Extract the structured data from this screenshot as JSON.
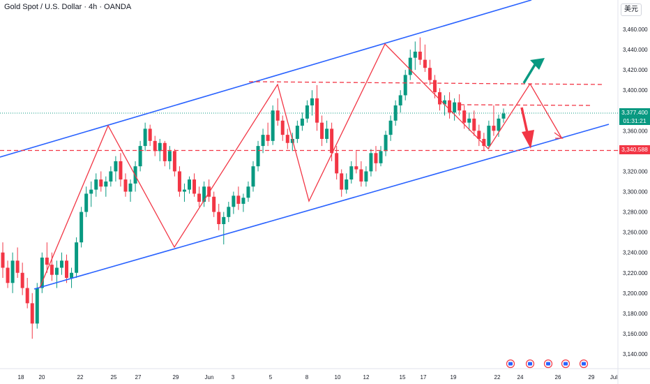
{
  "title": "Gold Spot / U.S. Dollar · 4h · OANDA",
  "currency_button": "美元",
  "price_tag": {
    "price": "3,377.400",
    "countdown": "01:31:21"
  },
  "level_tag": "3,340.588",
  "colors": {
    "up": "#089981",
    "down": "#f23645",
    "channel": "#2962ff",
    "pattern": "#f23645",
    "tag": "#089981"
  },
  "chart_data": {
    "type": "candlestick",
    "instrument": "Gold Spot / U.S. Dollar",
    "timeframe": "4h",
    "ylim": [
      3140,
      3470
    ],
    "y_ticks": [
      "3,460.000",
      "3,440.000",
      "3,420.000",
      "3,400.000",
      "3,380.000",
      "3,360.000",
      "3,340.000",
      "3,320.000",
      "3,300.000",
      "3,280.000",
      "3,260.000",
      "3,240.000",
      "3,220.000",
      "3,200.000",
      "3,180.000",
      "3,160.000",
      "3,140.000"
    ],
    "x_ticks": [
      "18",
      "20",
      "22",
      "25",
      "27",
      "29",
      "Jun",
      "3",
      "5",
      "8",
      "10",
      "12",
      "15",
      "17",
      "19",
      "22",
      "24",
      "26",
      "29",
      "Jul"
    ],
    "current_price": 3377.4,
    "support_level": 3340.588,
    "resistance_levels": [
      3405,
      3384
    ],
    "ohlc": [
      [
        3240,
        3250,
        3215,
        3225
      ],
      [
        3225,
        3232,
        3205,
        3210
      ],
      [
        3210,
        3240,
        3200,
        3232
      ],
      [
        3232,
        3245,
        3215,
        3220
      ],
      [
        3220,
        3230,
        3198,
        3205
      ],
      [
        3205,
        3215,
        3185,
        3190
      ],
      [
        3190,
        3200,
        3155,
        3170
      ],
      [
        3170,
        3210,
        3165,
        3205
      ],
      [
        3205,
        3240,
        3200,
        3235
      ],
      [
        3235,
        3250,
        3220,
        3228
      ],
      [
        3228,
        3240,
        3212,
        3218
      ],
      [
        3218,
        3232,
        3205,
        3225
      ],
      [
        3225,
        3240,
        3218,
        3232
      ],
      [
        3232,
        3238,
        3210,
        3215
      ],
      [
        3215,
        3225,
        3205,
        3220
      ],
      [
        3220,
        3255,
        3215,
        3250
      ],
      [
        3250,
        3285,
        3245,
        3280
      ],
      [
        3280,
        3305,
        3275,
        3298
      ],
      [
        3298,
        3310,
        3285,
        3302
      ],
      [
        3302,
        3318,
        3295,
        3312
      ],
      [
        3312,
        3320,
        3300,
        3305
      ],
      [
        3305,
        3315,
        3295,
        3310
      ],
      [
        3310,
        3325,
        3305,
        3320
      ],
      [
        3320,
        3335,
        3310,
        3330
      ],
      [
        3330,
        3338,
        3305,
        3312
      ],
      [
        3312,
        3318,
        3295,
        3300
      ],
      [
        3300,
        3312,
        3290,
        3308
      ],
      [
        3308,
        3330,
        3300,
        3325
      ],
      [
        3325,
        3350,
        3320,
        3345
      ],
      [
        3345,
        3368,
        3340,
        3362
      ],
      [
        3362,
        3366,
        3345,
        3350
      ],
      [
        3350,
        3355,
        3335,
        3340
      ],
      [
        3340,
        3352,
        3330,
        3348
      ],
      [
        3348,
        3350,
        3325,
        3330
      ],
      [
        3330,
        3345,
        3322,
        3340
      ],
      [
        3340,
        3342,
        3315,
        3320
      ],
      [
        3320,
        3325,
        3295,
        3300
      ],
      [
        3300,
        3308,
        3290,
        3302
      ],
      [
        3302,
        3315,
        3298,
        3312
      ],
      [
        3312,
        3318,
        3295,
        3298
      ],
      [
        3298,
        3305,
        3285,
        3290
      ],
      [
        3290,
        3310,
        3285,
        3305
      ],
      [
        3305,
        3312,
        3290,
        3295
      ],
      [
        3295,
        3300,
        3275,
        3280
      ],
      [
        3280,
        3288,
        3262,
        3268
      ],
      [
        3268,
        3280,
        3248,
        3275
      ],
      [
        3275,
        3290,
        3270,
        3285
      ],
      [
        3285,
        3300,
        3278,
        3296
      ],
      [
        3296,
        3305,
        3282,
        3288
      ],
      [
        3288,
        3298,
        3280,
        3294
      ],
      [
        3294,
        3310,
        3290,
        3305
      ],
      [
        3305,
        3330,
        3300,
        3325
      ],
      [
        3325,
        3350,
        3320,
        3345
      ],
      [
        3345,
        3362,
        3338,
        3356
      ],
      [
        3356,
        3368,
        3345,
        3350
      ],
      [
        3350,
        3385,
        3346,
        3380
      ],
      [
        3380,
        3392,
        3365,
        3370
      ],
      [
        3370,
        3375,
        3350,
        3356
      ],
      [
        3356,
        3362,
        3342,
        3348
      ],
      [
        3348,
        3358,
        3340,
        3352
      ],
      [
        3352,
        3370,
        3348,
        3365
      ],
      [
        3365,
        3378,
        3360,
        3372
      ],
      [
        3372,
        3390,
        3368,
        3385
      ],
      [
        3385,
        3400,
        3375,
        3392
      ],
      [
        3392,
        3405,
        3360,
        3368
      ],
      [
        3368,
        3375,
        3345,
        3352
      ],
      [
        3352,
        3370,
        3348,
        3362
      ],
      [
        3362,
        3368,
        3330,
        3338
      ],
      [
        3338,
        3345,
        3312,
        3318
      ],
      [
        3318,
        3322,
        3295,
        3302
      ],
      [
        3302,
        3318,
        3298,
        3312
      ],
      [
        3312,
        3330,
        3308,
        3325
      ],
      [
        3325,
        3340,
        3318,
        3322
      ],
      [
        3322,
        3330,
        3305,
        3310
      ],
      [
        3310,
        3325,
        3305,
        3320
      ],
      [
        3320,
        3342,
        3315,
        3338
      ],
      [
        3338,
        3345,
        3320,
        3328
      ],
      [
        3328,
        3345,
        3325,
        3340
      ],
      [
        3340,
        3360,
        3335,
        3356
      ],
      [
        3356,
        3375,
        3350,
        3370
      ],
      [
        3370,
        3390,
        3365,
        3385
      ],
      [
        3385,
        3400,
        3378,
        3395
      ],
      [
        3395,
        3420,
        3390,
        3415
      ],
      [
        3415,
        3440,
        3410,
        3432
      ],
      [
        3432,
        3448,
        3420,
        3438
      ],
      [
        3438,
        3452,
        3425,
        3430
      ],
      [
        3430,
        3445,
        3418,
        3422
      ],
      [
        3422,
        3430,
        3405,
        3410
      ],
      [
        3410,
        3415,
        3392,
        3398
      ],
      [
        3398,
        3402,
        3380,
        3386
      ],
      [
        3386,
        3395,
        3375,
        3390
      ],
      [
        3390,
        3398,
        3372,
        3378
      ],
      [
        3378,
        3392,
        3370,
        3388
      ],
      [
        3388,
        3396,
        3375,
        3380
      ],
      [
        3380,
        3385,
        3362,
        3368
      ],
      [
        3368,
        3378,
        3360,
        3372
      ],
      [
        3372,
        3380,
        3355,
        3360
      ],
      [
        3360,
        3366,
        3345,
        3352
      ],
      [
        3352,
        3358,
        3340,
        3345
      ],
      [
        3345,
        3370,
        3342,
        3365
      ],
      [
        3365,
        3385,
        3355,
        3360
      ],
      [
        3360,
        3376,
        3354,
        3372
      ],
      [
        3372,
        3382,
        3368,
        3377
      ]
    ]
  }
}
